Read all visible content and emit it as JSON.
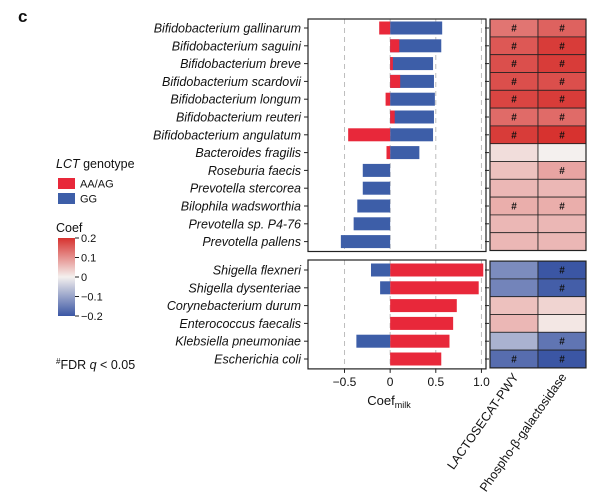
{
  "panel_letter": "c",
  "colors": {
    "aa": "#e8283a",
    "gg": "#3d5ea8",
    "box_stroke": "#222222",
    "grid": "#bdbdbd"
  },
  "legend": {
    "genotype_gene": "LCT",
    "genotype_rest": " genotype",
    "items": [
      {
        "label": "AA/AG",
        "color": "#e8283a"
      },
      {
        "label": "GG",
        "color": "#3d5ea8"
      }
    ],
    "coef_title": "Coef",
    "coef_ticks": [
      {
        "value": 0.2,
        "label": "0.2"
      },
      {
        "value": 0.1,
        "label": "0.1"
      },
      {
        "value": 0.0,
        "label": "0"
      },
      {
        "value": -0.1,
        "label": "−0.1"
      },
      {
        "value": -0.2,
        "label": "−0.2"
      }
    ],
    "coef_range": [
      -0.2,
      0.2
    ],
    "footnote_symbol": "#",
    "footnote_fdr": "FDR ",
    "footnote_q": "q",
    "footnote_rest": " < 0.05"
  },
  "chart_data": {
    "type": "bar",
    "orientation": "horizontal",
    "xlabel": "Coef",
    "xlabel_sub": "milk",
    "xlim": [
      -0.9,
      1.05
    ],
    "xticks": [
      {
        "value": -0.5,
        "label": "−0.5"
      },
      {
        "value": 0,
        "label": "0"
      },
      {
        "value": 0.5,
        "label": "0.5"
      },
      {
        "value": 1.0,
        "label": "1.0"
      }
    ],
    "series": [
      {
        "name": "AA/AG",
        "key": "aa"
      },
      {
        "name": "GG",
        "key": "gg"
      }
    ],
    "heatmap_columns": [
      "LACTOSECAT-PWY",
      "Phospho-β-galactosidase"
    ],
    "panels": [
      {
        "rows": [
          {
            "name": "Bifidobacterium gallinarum",
            "aa": -0.12,
            "gg": 0.57,
            "heat": [
              0.13,
              0.15
            ],
            "sig": [
              true,
              true
            ]
          },
          {
            "name": "Bifidobacterium saguini",
            "aa": 0.1,
            "gg": 0.56,
            "heat": [
              0.16,
              0.19
            ],
            "sig": [
              true,
              true
            ]
          },
          {
            "name": "Bifidobacterium breve",
            "aa": 0.03,
            "gg": 0.47,
            "heat": [
              0.17,
              0.19
            ],
            "sig": [
              true,
              true
            ]
          },
          {
            "name": "Bifidobacterium scardovii",
            "aa": 0.11,
            "gg": 0.48,
            "heat": [
              0.17,
              0.17
            ],
            "sig": [
              true,
              true
            ]
          },
          {
            "name": "Bifidobacterium longum",
            "aa": -0.05,
            "gg": 0.49,
            "heat": [
              0.18,
              0.19
            ],
            "sig": [
              true,
              true
            ]
          },
          {
            "name": "Bifidobacterium reuteri",
            "aa": 0.05,
            "gg": 0.48,
            "heat": [
              0.14,
              0.14
            ],
            "sig": [
              true,
              true
            ]
          },
          {
            "name": "Bifidobacterium angulatum",
            "aa": -0.46,
            "gg": 0.47,
            "heat": [
              0.19,
              0.2
            ],
            "sig": [
              true,
              true
            ]
          },
          {
            "name": "Bacteroides fragilis",
            "aa": -0.04,
            "gg": 0.32,
            "heat": [
              0.02,
              0.0
            ],
            "sig": [
              false,
              false
            ]
          },
          {
            "name": "Roseburia faecis",
            "aa": 0.0,
            "gg": -0.3,
            "heat": [
              0.05,
              0.08
            ],
            "sig": [
              false,
              true
            ]
          },
          {
            "name": "Prevotella stercorea",
            "aa": 0.0,
            "gg": -0.3,
            "heat": [
              0.06,
              0.06
            ],
            "sig": [
              false,
              false
            ]
          },
          {
            "name": "Bilophila wadsworthia",
            "aa": 0.0,
            "gg": -0.36,
            "heat": [
              0.07,
              0.07
            ],
            "sig": [
              true,
              true
            ]
          },
          {
            "name": "Prevotella sp. P4-76",
            "aa": 0.0,
            "gg": -0.4,
            "heat": [
              0.06,
              0.06
            ],
            "sig": [
              false,
              false
            ]
          },
          {
            "name": "Prevotella pallens",
            "aa": 0.0,
            "gg": -0.54,
            "heat": [
              0.06,
              0.06
            ],
            "sig": [
              false,
              false
            ]
          }
        ]
      },
      {
        "rows": [
          {
            "name": "Shigella flexneri",
            "aa": 1.02,
            "gg": -0.21,
            "heat": [
              -0.13,
              -0.2
            ],
            "sig": [
              false,
              true
            ]
          },
          {
            "name": "Shigella dysenteriae",
            "aa": 0.97,
            "gg": -0.11,
            "heat": [
              -0.14,
              -0.19
            ],
            "sig": [
              false,
              true
            ]
          },
          {
            "name": "Corynebacterium durum",
            "aa": 0.73,
            "gg": 0.0,
            "heat": [
              0.05,
              0.03
            ],
            "sig": [
              false,
              false
            ]
          },
          {
            "name": "Enterococcus faecalis",
            "aa": 0.69,
            "gg": 0.0,
            "heat": [
              0.06,
              0.01
            ],
            "sig": [
              false,
              false
            ]
          },
          {
            "name": "Klebsiella pneumoniae",
            "aa": 0.65,
            "gg": -0.37,
            "heat": [
              -0.08,
              -0.16
            ],
            "sig": [
              false,
              true
            ]
          },
          {
            "name": "Escherichia coli",
            "aa": 0.56,
            "gg": 0.0,
            "heat": [
              -0.17,
              -0.2
            ],
            "sig": [
              true,
              true
            ]
          }
        ]
      }
    ]
  }
}
